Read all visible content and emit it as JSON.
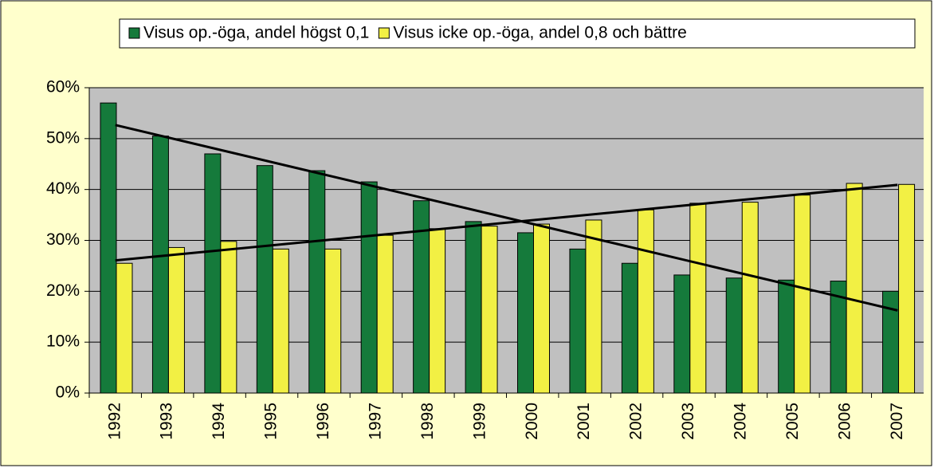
{
  "chart_data": {
    "type": "bar",
    "categories": [
      "1992",
      "1993",
      "1994",
      "1995",
      "1996",
      "1997",
      "1998",
      "1999",
      "2000",
      "2001",
      "2002",
      "2003",
      "2004",
      "2005",
      "2006",
      "2007"
    ],
    "series": [
      {
        "name": "Visus op.-öga, andel högst 0,1",
        "color": "#157a3b",
        "values": [
          57,
          50.5,
          47,
          44.7,
          43.7,
          41.5,
          37.8,
          33.7,
          31.5,
          28.3,
          25.5,
          23.2,
          22.6,
          22.2,
          22,
          20
        ]
      },
      {
        "name": "Visus icke op.-öga, andel 0,8 och bättre",
        "color": "#f2f044",
        "values": [
          25.5,
          28.6,
          29.8,
          28.3,
          28.3,
          31,
          32.3,
          32.8,
          33.2,
          34,
          36,
          37.3,
          37.5,
          38.9,
          41.2,
          41
        ]
      }
    ],
    "ylim": [
      0,
      60
    ],
    "yticks": [
      {
        "value": 0,
        "label": "0%"
      },
      {
        "value": 10,
        "label": "10%"
      },
      {
        "value": 20,
        "label": "20%"
      },
      {
        "value": 30,
        "label": "30%"
      },
      {
        "value": 40,
        "label": "40%"
      },
      {
        "value": 50,
        "label": "50%"
      },
      {
        "value": 60,
        "label": "60%"
      }
    ],
    "grid": true,
    "trendline": true,
    "legend": "top"
  }
}
